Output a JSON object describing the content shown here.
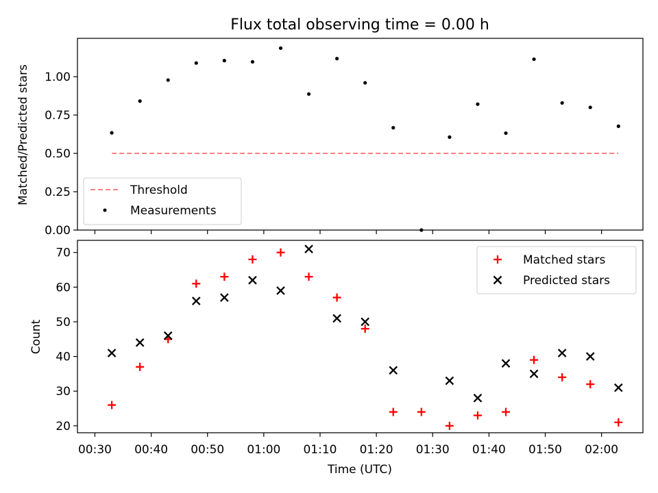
{
  "title": "Flux total observing time = 0.00 h",
  "chart_data": [
    {
      "type": "scatter",
      "ylabel": "Matched/Predicted stars",
      "ylim": [
        0,
        1.25
      ],
      "yticks": [
        "0.00",
        "0.25",
        "0.50",
        "0.75",
        "1.00"
      ],
      "yticks_values": [
        0,
        0.25,
        0.5,
        0.75,
        1.0
      ],
      "x_start_minutes": 33,
      "x_step_minutes": 5,
      "ratios": [
        0.634,
        0.841,
        0.978,
        1.089,
        1.105,
        1.097,
        1.186,
        0.887,
        1.118,
        0.96,
        0.667,
        0.0,
        0.606,
        0.821,
        0.632,
        1.114,
        0.829,
        0.8,
        0.677
      ],
      "threshold": 0.5,
      "legend": {
        "placement": "lower-left",
        "threshold_label": "Threshold",
        "measurements_label": "Measurements"
      },
      "colors": {
        "threshold": "#ff7f7f",
        "measurements": "#000000"
      }
    },
    {
      "type": "scatter",
      "xlabel": "Time (UTC)",
      "ylabel": "Count",
      "ylim": [
        18,
        73.5
      ],
      "yticks": [
        "20",
        "30",
        "40",
        "50",
        "60",
        "70"
      ],
      "yticks_values": [
        20,
        30,
        40,
        50,
        60,
        70
      ],
      "xticks": [
        "00:30",
        "00:40",
        "00:50",
        "01:00",
        "01:10",
        "01:20",
        "01:30",
        "01:40",
        "01:50",
        "02:00"
      ],
      "xtick_minutes": [
        30,
        40,
        50,
        60,
        70,
        80,
        90,
        100,
        110,
        120
      ],
      "series": [
        {
          "name": "Matched stars",
          "marker": "plus",
          "color": "#ff0000",
          "values": [
            26,
            37,
            45,
            61,
            63,
            68,
            70,
            63,
            57,
            48,
            24,
            24,
            20,
            23,
            24,
            39,
            34,
            32,
            21
          ]
        },
        {
          "name": "Predicted stars",
          "marker": "x",
          "color": "#000000",
          "values": [
            41,
            44,
            46,
            56,
            57,
            62,
            59,
            71,
            51,
            50,
            36,
            null,
            33,
            28,
            38,
            35,
            41,
            40,
            31
          ]
        }
      ],
      "legend": {
        "placement": "upper-right"
      }
    }
  ]
}
